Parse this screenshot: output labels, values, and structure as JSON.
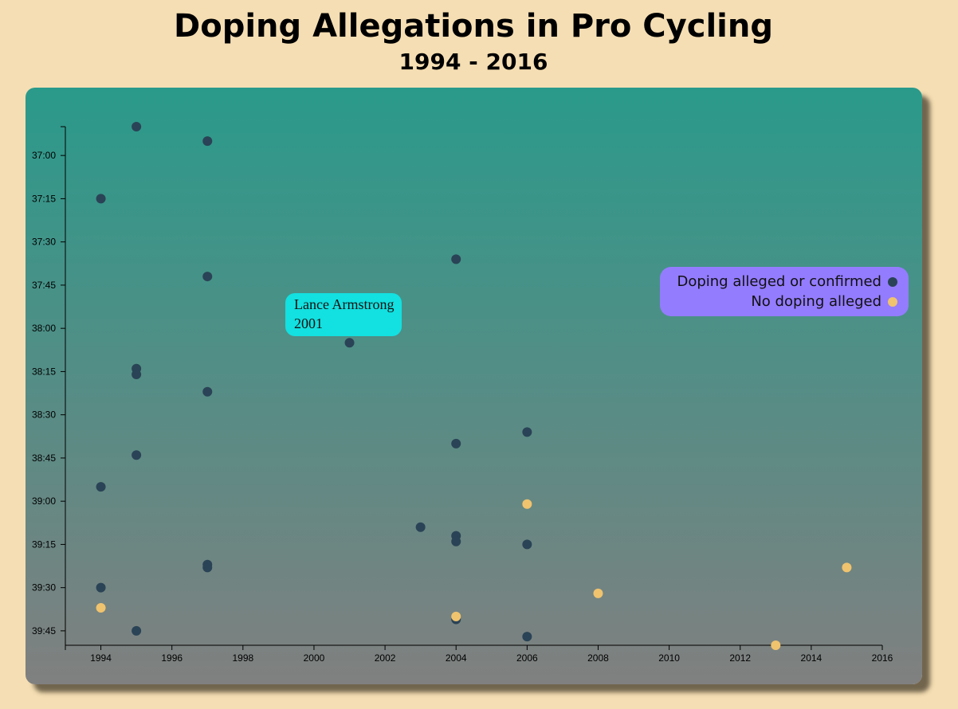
{
  "chart_data": {
    "type": "scatter",
    "title": "Doping Allegations in Pro Cycling",
    "subtitle": "1994 - 2016",
    "xlabel": "",
    "ylabel": "",
    "xlim": [
      1993,
      2016
    ],
    "ylim": [
      "36:50",
      "39:50"
    ],
    "y_inverted": true,
    "x_ticks": [
      "1994",
      "1996",
      "1998",
      "2000",
      "2002",
      "2004",
      "2006",
      "2008",
      "2010",
      "2012",
      "2014",
      "2016"
    ],
    "y_ticks": [
      "37:00",
      "37:15",
      "37:30",
      "37:45",
      "38:00",
      "38:15",
      "38:30",
      "38:45",
      "39:00",
      "39:15",
      "39:30",
      "39:45"
    ],
    "grid": false,
    "legend_position": "right",
    "series": [
      {
        "name": "Doping alleged or confirmed",
        "color": "#2a4356",
        "points": [
          {
            "x": 1995,
            "y": "36:50"
          },
          {
            "x": 1997,
            "y": "36:55"
          },
          {
            "x": 1994,
            "y": "37:15"
          },
          {
            "x": 2004,
            "y": "37:36"
          },
          {
            "x": 1997,
            "y": "37:42"
          },
          {
            "x": 2001,
            "y": "38:05"
          },
          {
            "x": 1995,
            "y": "38:14"
          },
          {
            "x": 1995,
            "y": "38:16"
          },
          {
            "x": 1997,
            "y": "38:22"
          },
          {
            "x": 2006,
            "y": "38:36"
          },
          {
            "x": 2004,
            "y": "38:40"
          },
          {
            "x": 1995,
            "y": "38:44"
          },
          {
            "x": 1994,
            "y": "38:55"
          },
          {
            "x": 2003,
            "y": "39:09"
          },
          {
            "x": 2004,
            "y": "39:12"
          },
          {
            "x": 2004,
            "y": "39:14"
          },
          {
            "x": 2006,
            "y": "39:15"
          },
          {
            "x": 1997,
            "y": "39:22"
          },
          {
            "x": 1997,
            "y": "39:23"
          },
          {
            "x": 1994,
            "y": "39:30"
          },
          {
            "x": 2004,
            "y": "39:41"
          },
          {
            "x": 1995,
            "y": "39:45"
          },
          {
            "x": 2006,
            "y": "39:47"
          }
        ]
      },
      {
        "name": "No doping alleged",
        "color": "#f0c36e",
        "points": [
          {
            "x": 2006,
            "y": "39:01"
          },
          {
            "x": 2015,
            "y": "39:23"
          },
          {
            "x": 2008,
            "y": "39:32"
          },
          {
            "x": 1994,
            "y": "39:37"
          },
          {
            "x": 2004,
            "y": "39:40"
          },
          {
            "x": 2013,
            "y": "39:50"
          }
        ]
      }
    ],
    "tooltip": {
      "name": "Lance Armstrong",
      "year": "2001"
    }
  }
}
